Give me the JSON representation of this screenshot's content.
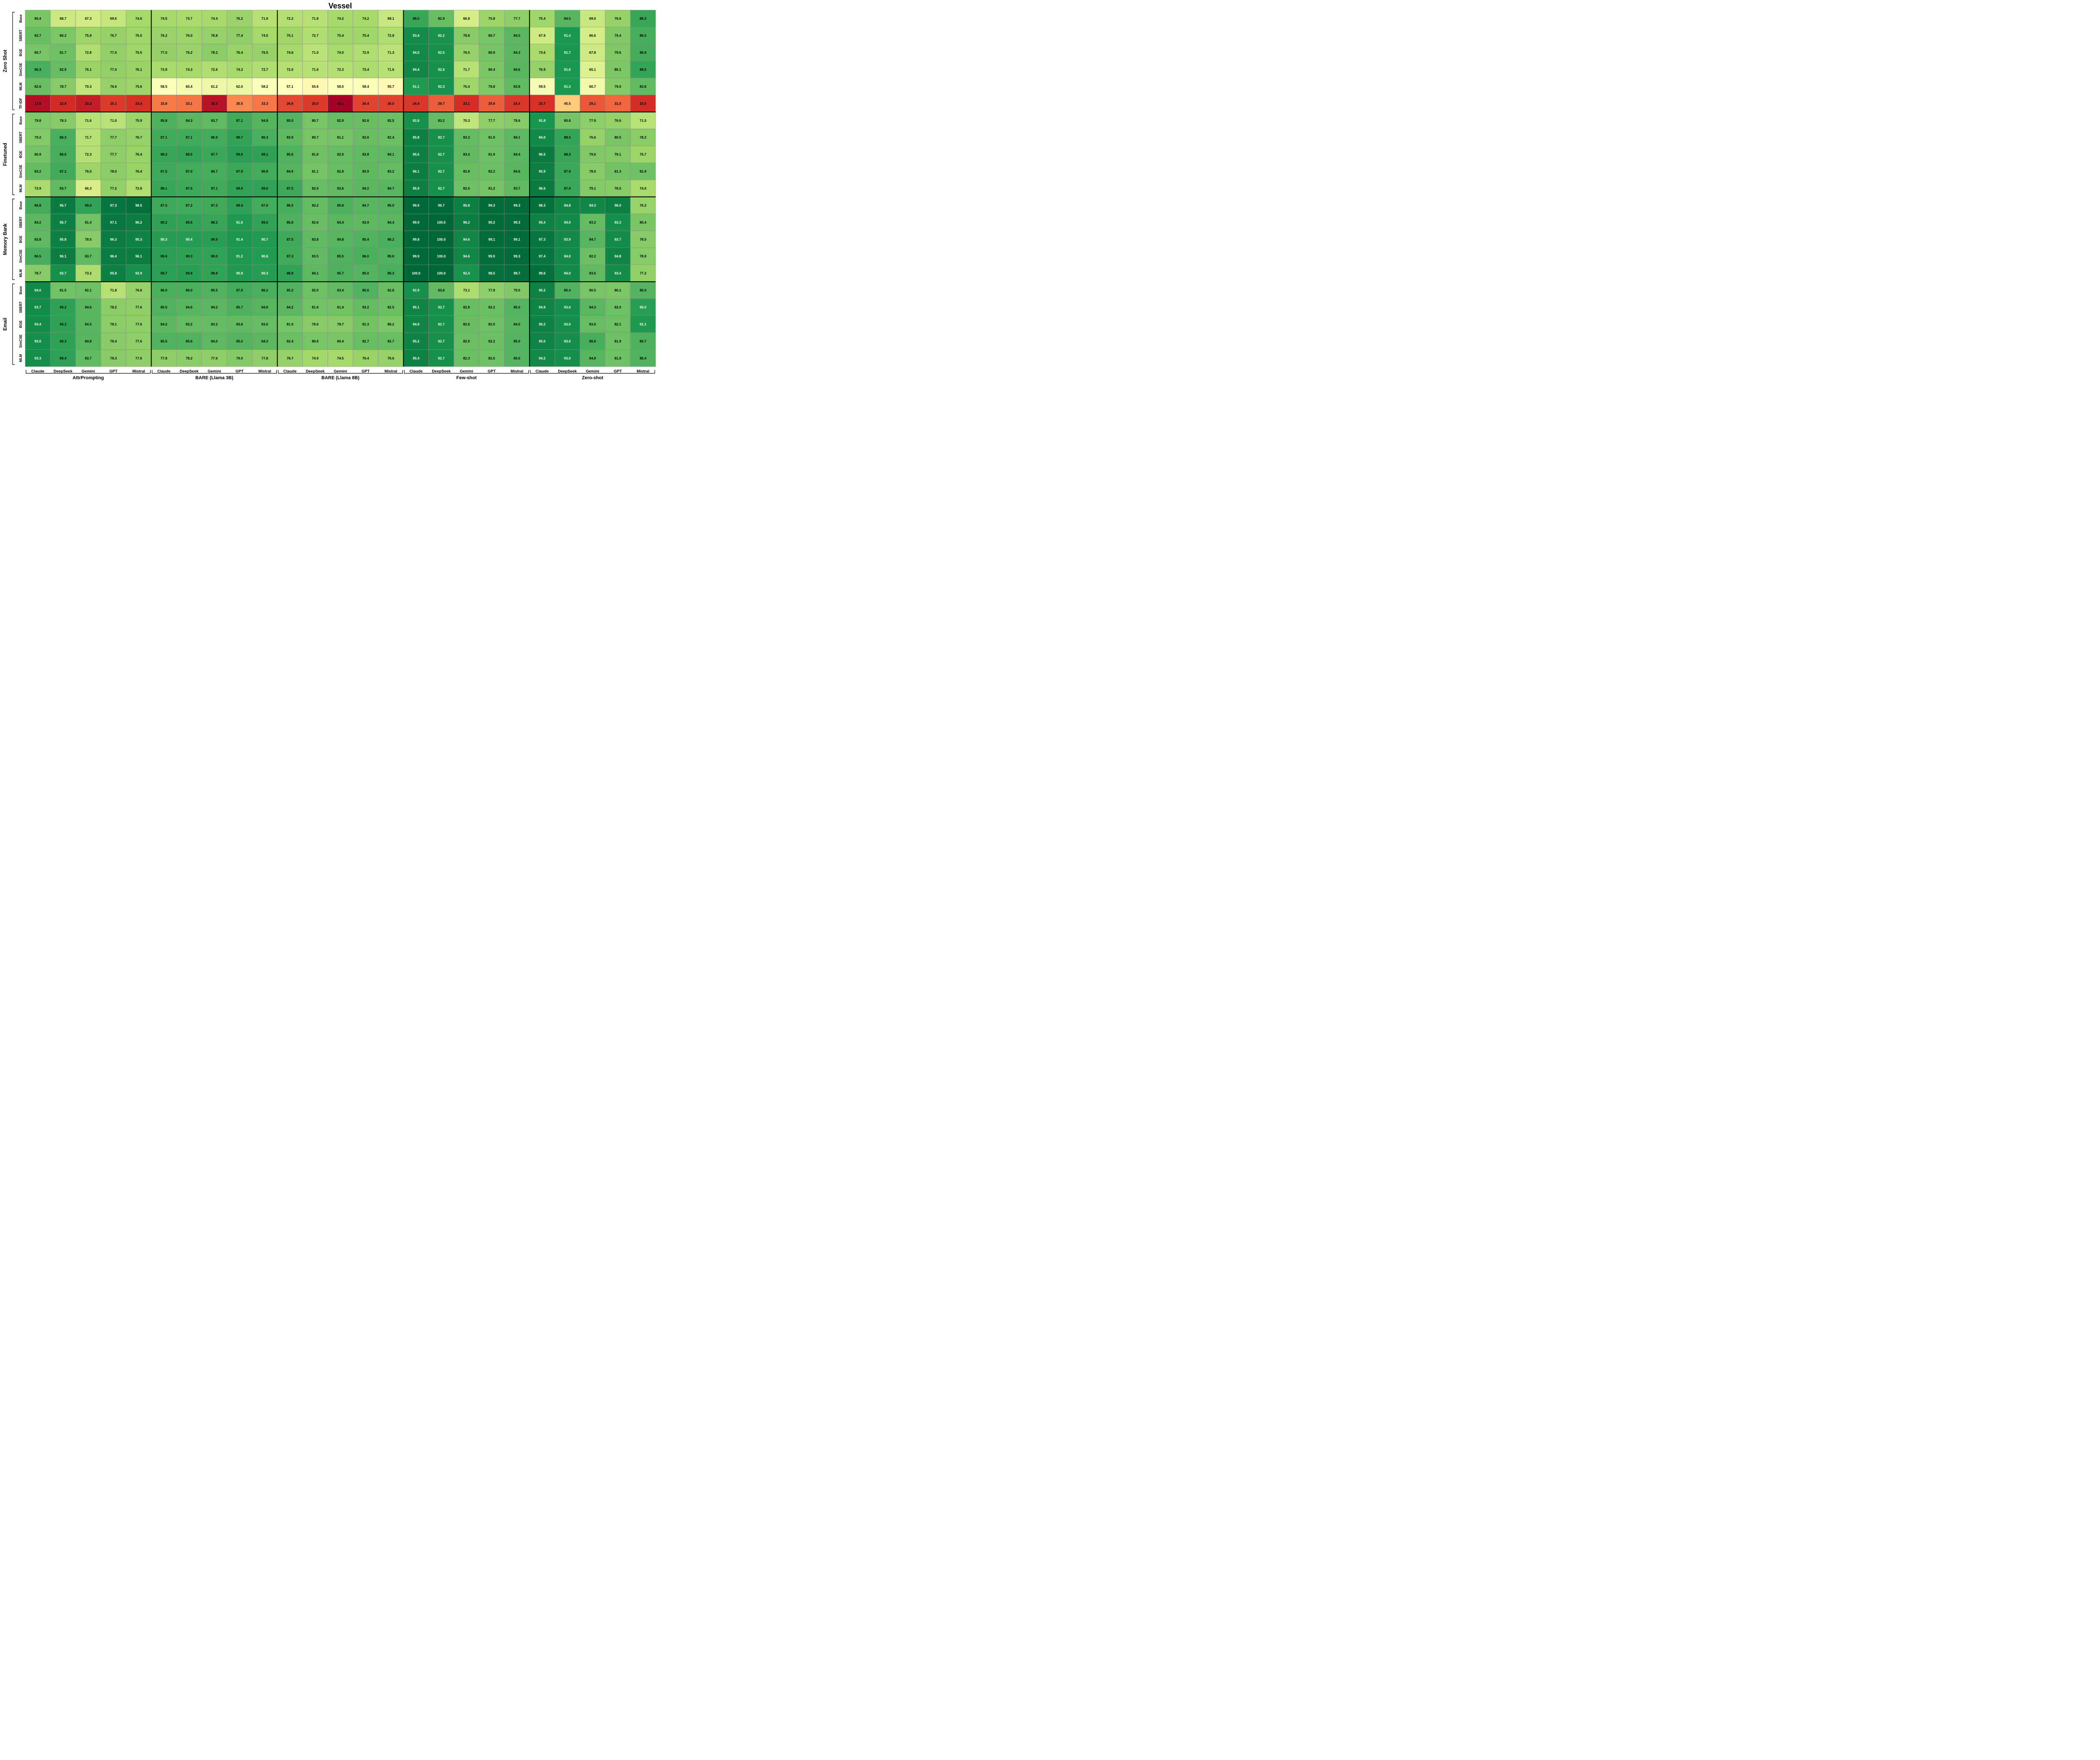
{
  "chart_data": {
    "type": "heatmap",
    "title": "Vessel",
    "colormap": "RdYlGn",
    "color_range": [
      15,
      100
    ],
    "row_groups": [
      {
        "name": "Zero Shot",
        "rows": [
          "Base",
          "SBERT",
          "BGE",
          "SimCSE",
          "MLM",
          "TF-IDF"
        ]
      },
      {
        "name": "Finetuned",
        "rows": [
          "Base",
          "SBERT",
          "BGE",
          "SimCSE",
          "MLM"
        ]
      },
      {
        "name": "Memory Bank",
        "rows": [
          "Base",
          "SBERT",
          "BGE",
          "SimCSE",
          "MLM"
        ]
      },
      {
        "name": "Email",
        "rows": [
          "Base",
          "SBERT",
          "BGE",
          "SimCSE",
          "MLM"
        ]
      }
    ],
    "column_groups": [
      {
        "name": "AttrPrompting",
        "columns": [
          "Claude",
          "DeepSeek",
          "Gemini",
          "GPT",
          "Mistral"
        ]
      },
      {
        "name": "BARE (Llama 3B)",
        "columns": [
          "Claude",
          "DeepSeek",
          "Gemini",
          "GPT",
          "Mistral"
        ]
      },
      {
        "name": "BARE (Llama 8B)",
        "columns": [
          "Claude",
          "DeepSeek",
          "Gemini",
          "GPT",
          "Mistral"
        ]
      },
      {
        "name": "Few-shot",
        "columns": [
          "Claude",
          "DeepSeek",
          "Gemini",
          "GPT",
          "Mistral"
        ]
      },
      {
        "name": "Zero-shot",
        "columns": [
          "Claude",
          "DeepSeek",
          "Gemini",
          "GPT",
          "Mistral"
        ]
      }
    ],
    "values": [
      [
        80.4,
        68.7,
        67.3,
        69.6,
        74.6,
        74.5,
        73.7,
        74.4,
        76.2,
        71.9,
        72.2,
        71.8,
        74.2,
        74.2,
        69.1,
        88.0,
        82.8,
        66.8,
        75.8,
        77.7,
        75.4,
        84.5,
        69.0,
        76.6,
        88.3
      ],
      [
        82.7,
        80.2,
        75.8,
        76.7,
        75.5,
        76.2,
        76.0,
        76.8,
        77.4,
        74.5,
        75.1,
        72.7,
        75.4,
        75.4,
        72.8,
        93.4,
        92.2,
        78.8,
        80.7,
        84.3,
        67.9,
        91.4,
        66.6,
        79.4,
        86.5
      ],
      [
        80.7,
        81.7,
        72.8,
        77.0,
        75.5,
        77.0,
        76.2,
        78.2,
        76.4,
        76.5,
        74.6,
        71.0,
        74.0,
        72.9,
        71.3,
        94.0,
        92.5,
        76.5,
        80.9,
        84.3,
        73.6,
        91.7,
        67.8,
        79.6,
        86.8
      ],
      [
        86.3,
        82.9,
        76.1,
        77.0,
        76.1,
        73.8,
        74.3,
        72.6,
        74.3,
        72.7,
        72.0,
        71.6,
        72.3,
        73.4,
        71.6,
        94.4,
        92.6,
        71.7,
        80.4,
        84.6,
        76.9,
        91.6,
        65.1,
        80.1,
        88.6
      ],
      [
        82.6,
        78.7,
        70.3,
        76.6,
        75.6,
        58.5,
        60.4,
        61.2,
        62.0,
        58.2,
        57.1,
        55.6,
        58.0,
        58.4,
        55.7,
        91.1,
        92.3,
        75.4,
        79.8,
        83.8,
        59.5,
        91.3,
        60.7,
        79.0,
        83.8
      ],
      [
        17.6,
        22.8,
        20.3,
        25.1,
        23.4,
        33.8,
        33.1,
        18.3,
        35.5,
        33.3,
        26.8,
        25.0,
        15.1,
        26.4,
        26.0,
        24.4,
        29.7,
        23.1,
        29.8,
        24.4,
        23.7,
        45.5,
        29.1,
        31.0,
        23.0
      ],
      [
        79.8,
        78.3,
        71.6,
        71.0,
        75.9,
        85.8,
        84.3,
        83.7,
        87.1,
        84.9,
        85.0,
        80.7,
        82.9,
        82.6,
        82.5,
        92.8,
        83.2,
        70.3,
        77.7,
        78.6,
        91.8,
        80.8,
        77.9,
        76.6,
        71.5
      ],
      [
        79.2,
        86.3,
        71.7,
        77.7,
        76.7,
        87.1,
        87.1,
        86.9,
        88.7,
        86.3,
        83.9,
        80.7,
        81.1,
        82.6,
        82.4,
        95.8,
        92.7,
        83.3,
        81.9,
        84.1,
        94.0,
        88.5,
        76.6,
        80.5,
        78.2
      ],
      [
        80.9,
        86.6,
        72.3,
        77.7,
        76.4,
        88.2,
        88.5,
        87.7,
        89.6,
        89.1,
        85.6,
        81.8,
        82.9,
        83.8,
        84.1,
        95.6,
        92.7,
        83.4,
        81.9,
        84.4,
        96.5,
        88.3,
        79.6,
        79.1,
        75.7
      ],
      [
        83.2,
        87.1,
        76.0,
        78.0,
        76.4,
        87.5,
        87.0,
        86.7,
        87.9,
        86.9,
        84.9,
        81.1,
        82.8,
        83.9,
        83.2,
        96.1,
        92.7,
        82.8,
        82.2,
        84.6,
        95.9,
        87.9,
        78.5,
        81.3,
        81.9
      ],
      [
        73.9,
        83.7,
        66.3,
        77.2,
        72.8,
        88.1,
        87.5,
        87.1,
        89.0,
        89.0,
        87.5,
        82.9,
        83.6,
        84.2,
        84.7,
        95.9,
        92.7,
        82.0,
        81.2,
        83.7,
        96.6,
        87.9,
        79.1,
        78.5,
        74.0
      ],
      [
        86.8,
        96.7,
        89.0,
        97.3,
        98.5,
        87.5,
        87.2,
        87.3,
        89.4,
        87.0,
        86.5,
        83.2,
        85.8,
        84.7,
        85.0,
        99.9,
        99.7,
        95.8,
        99.3,
        99.3,
        98.3,
        94.8,
        94.3,
        96.0,
        76.3
      ],
      [
        84.2,
        95.7,
        81.4,
        97.1,
        96.2,
        89.2,
        88.8,
        88.3,
        91.0,
        89.0,
        85.8,
        82.6,
        84.4,
        83.9,
        84.4,
        99.9,
        100.0,
        96.2,
        99.2,
        99.3,
        95.4,
        94.0,
        83.2,
        93.3,
        80.4
      ],
      [
        83.8,
        95.8,
        78.5,
        96.3,
        95.3,
        90.3,
        90.4,
        89.9,
        91.4,
        90.7,
        87.5,
        83.8,
        84.8,
        85.4,
        86.2,
        99.8,
        100.0,
        94.6,
        99.1,
        99.1,
        97.3,
        93.9,
        84.7,
        93.7,
        78.5
      ],
      [
        86.5,
        96.1,
        83.7,
        96.4,
        96.1,
        89.6,
        89.3,
        89.0,
        91.2,
        90.6,
        87.3,
        83.5,
        85.5,
        86.0,
        85.6,
        99.9,
        100.0,
        94.6,
        99.0,
        99.3,
        97.4,
        94.0,
        82.2,
        94.8,
        78.9
      ],
      [
        78.7,
        92.7,
        73.2,
        95.8,
        92.9,
        89.7,
        89.8,
        88.8,
        90.9,
        90.3,
        88.8,
        84.1,
        85.7,
        85.0,
        86.3,
        100.0,
        100.0,
        92.4,
        98.5,
        98.7,
        98.6,
        94.0,
        83.6,
        93.4,
        77.2
      ],
      [
        94.0,
        81.5,
        82.1,
        71.8,
        76.6,
        86.0,
        86.0,
        85.5,
        87.0,
        86.2,
        85.2,
        82.0,
        83.4,
        85.6,
        82.8,
        92.9,
        83.6,
        73.1,
        77.9,
        79.5,
        95.2,
        85.4,
        80.5,
        80.1,
        85.0
      ],
      [
        93.7,
        89.2,
        84.6,
        78.2,
        77.6,
        85.5,
        84.6,
        84.2,
        85.7,
        84.8,
        84.2,
        81.6,
        81.4,
        83.2,
        82.5,
        95.1,
        92.7,
        82.8,
        82.2,
        85.0,
        94.9,
        93.0,
        84.3,
        82.0,
        90.0
      ],
      [
        93.4,
        89.2,
        84.5,
        78.1,
        77.6,
        84.2,
        83.2,
        83.2,
        83.6,
        83.0,
        81.0,
        78.6,
        78.7,
        81.3,
        80.2,
        94.9,
        92.7,
        82.6,
        82.0,
        84.5,
        95.2,
        93.0,
        83.0,
        82.1,
        91.1
      ],
      [
        93.0,
        89.3,
        84.8,
        78.4,
        77.6,
        85.5,
        85.6,
        84.0,
        85.0,
        84.3,
        82.4,
        80.6,
        80.4,
        82.7,
        82.7,
        95.2,
        92.7,
        82.5,
        82.2,
        85.0,
        95.0,
        93.0,
        86.6,
        81.9,
        85.7
      ],
      [
        93.3,
        89.4,
        83.7,
        78.3,
        77.6,
        77.8,
        78.2,
        77.6,
        79.0,
        77.8,
        76.7,
        74.9,
        74.5,
        76.4,
        76.6,
        95.4,
        92.7,
        82.3,
        82.0,
        85.0,
        94.2,
        93.0,
        84.8,
        81.9,
        85.4
      ]
    ]
  }
}
